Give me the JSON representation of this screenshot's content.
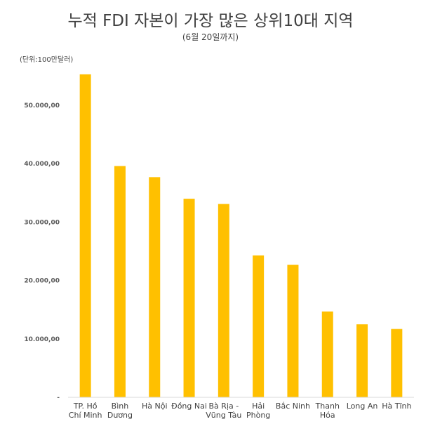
{
  "chart_data": {
    "type": "bar",
    "title": "누적 FDI 자본이 가장 많은 상위10대 지역",
    "subtitle": "(6월 20일까지)",
    "unit_label": "(단위:100만달러)",
    "categories": [
      [
        "TP. Hồ",
        "Chí Minh"
      ],
      [
        "Bình",
        "Dương"
      ],
      [
        "Hà Nội"
      ],
      [
        "Đồng Nai"
      ],
      [
        "Bà Rịa -",
        "Vũng Tàu"
      ],
      [
        "Hải",
        "Phòng"
      ],
      [
        "Bắc Ninh"
      ],
      [
        "Thanh",
        "Hóa"
      ],
      [
        "Long An"
      ],
      [
        "Hà Tĩnh"
      ]
    ],
    "values": [
      55300,
      39600,
      37700,
      34000,
      33100,
      24300,
      22700,
      14700,
      12500,
      11700
    ],
    "ylim": [
      0,
      58000
    ],
    "yticks": [
      0,
      10000,
      20000,
      30000,
      40000,
      50000
    ],
    "ytick_labels": [
      "-",
      "10.000,00",
      "20.000,00",
      "30.000,00",
      "40.000,00",
      "50.000,00"
    ],
    "bar_color": "#FFC000",
    "axis_color": "#d9d9d9",
    "grid": false,
    "legend": "none"
  }
}
